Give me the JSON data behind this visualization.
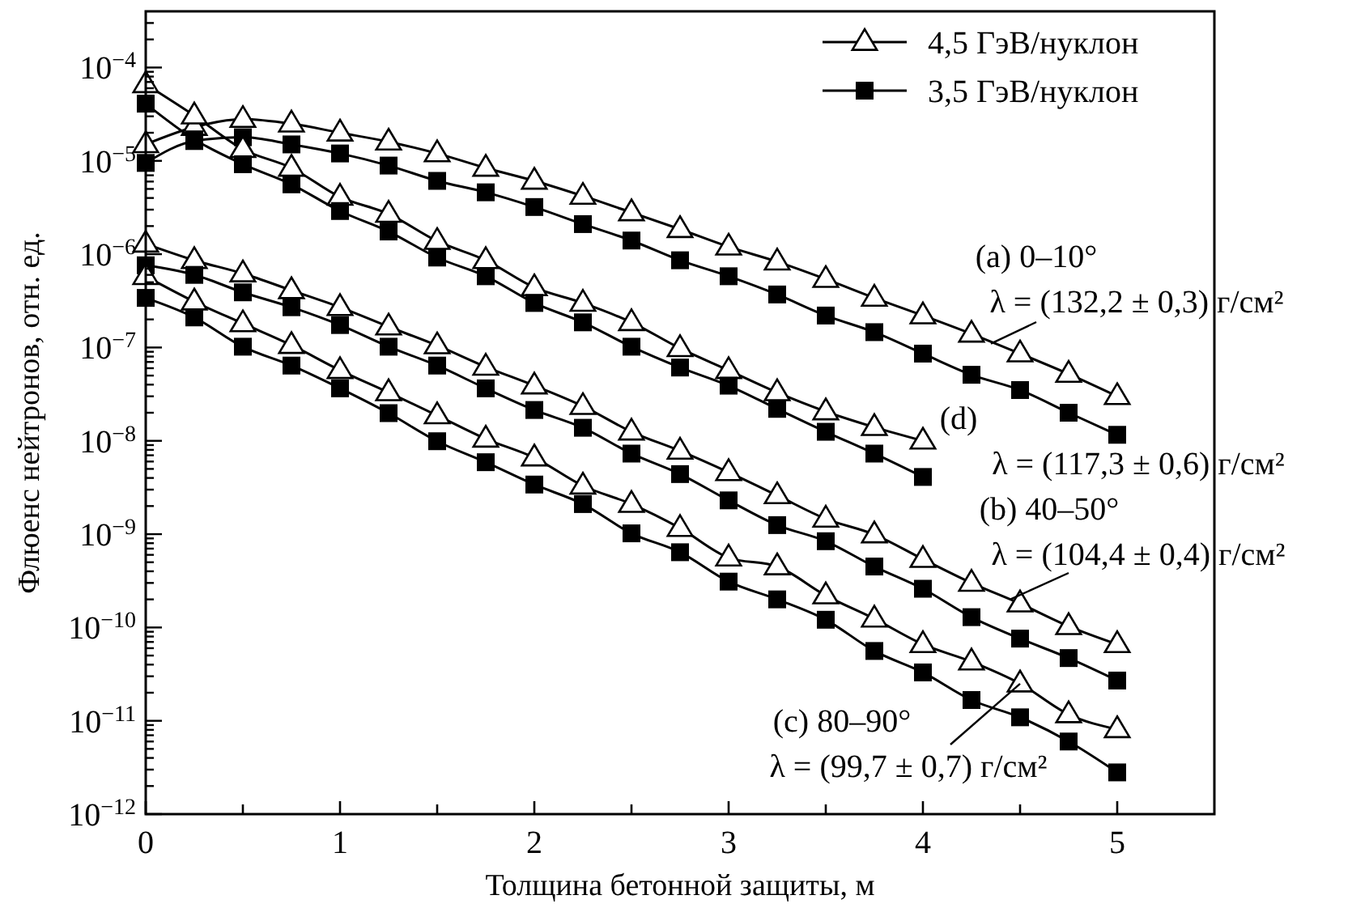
{
  "chart_data": {
    "type": "line",
    "xlabel": "Толщина бетонной защиты, м",
    "ylabel": "Флюенс нейтронов, отн. ед.",
    "log": "y",
    "legend": "top right",
    "line_style": "solid",
    "xlim": [
      0,
      5.5
    ],
    "xticks": [
      0,
      {
        "value": 0.5,
        "label": null
      },
      1,
      {
        "value": 1.5,
        "label": null
      },
      2,
      {
        "value": 2.5,
        "label": null
      },
      3,
      {
        "value": 3.5,
        "label": null
      },
      4,
      {
        "value": 4.5,
        "label": null
      },
      5
    ],
    "ylim": [
      1e-12,
      0.0004
    ],
    "yticks": [
      {
        "value": 1e-12,
        "label": "10$^{−12}$"
      },
      {
        "value": 2e-12,
        "label": null
      },
      {
        "value": 3e-12,
        "label": null
      },
      {
        "value": 4e-12,
        "label": null
      },
      {
        "value": 5e-12,
        "label": null
      },
      {
        "value": 6e-12,
        "label": null
      },
      {
        "value": 7e-12,
        "label": null
      },
      {
        "value": 8e-12,
        "label": null
      },
      {
        "value": 9e-12,
        "label": null
      },
      {
        "value": 1e-11,
        "label": "10$^{−11}$"
      },
      {
        "value": 2e-11,
        "label": null
      },
      {
        "value": 3e-11,
        "label": null
      },
      {
        "value": 4e-11,
        "label": null
      },
      {
        "value": 5e-11,
        "label": null
      },
      {
        "value": 6e-11,
        "label": null
      },
      {
        "value": 7e-11,
        "label": null
      },
      {
        "value": 8e-11,
        "label": null
      },
      {
        "value": 9e-11,
        "label": null
      },
      {
        "value": 1e-10,
        "label": "10$^{−10}$"
      },
      {
        "value": 2e-10,
        "label": null
      },
      {
        "value": 3e-10,
        "label": null
      },
      {
        "value": 4e-10,
        "label": null
      },
      {
        "value": 5e-10,
        "label": null
      },
      {
        "value": 6e-10,
        "label": null
      },
      {
        "value": 7e-10,
        "label": null
      },
      {
        "value": 8e-10,
        "label": null
      },
      {
        "value": 9e-10,
        "label": null
      },
      {
        "value": 1e-09,
        "label": "10$^{−9}$"
      },
      {
        "value": 2e-09,
        "label": null
      },
      {
        "value": 3e-09,
        "label": null
      },
      {
        "value": 4e-09,
        "label": null
      },
      {
        "value": 5e-09,
        "label": null
      },
      {
        "value": 6e-09,
        "label": null
      },
      {
        "value": 7e-09,
        "label": null
      },
      {
        "value": 8e-09,
        "label": null
      },
      {
        "value": 9e-09,
        "label": null
      },
      {
        "value": 1e-08,
        "label": "10$^{−8}$"
      },
      {
        "value": 2e-08,
        "label": null
      },
      {
        "value": 3e-08,
        "label": null
      },
      {
        "value": 4e-08,
        "label": null
      },
      {
        "value": 5e-08,
        "label": null
      },
      {
        "value": 6e-08,
        "label": null
      },
      {
        "value": 7e-08,
        "label": null
      },
      {
        "value": 8e-08,
        "label": null
      },
      {
        "value": 9e-08,
        "label": null
      },
      {
        "value": 1e-07,
        "label": "10$^{−7}$"
      },
      {
        "value": 2e-07,
        "label": null
      },
      {
        "value": 3e-07,
        "label": null
      },
      {
        "value": 4e-07,
        "label": null
      },
      {
        "value": 5e-07,
        "label": null
      },
      {
        "value": 6e-07,
        "label": null
      },
      {
        "value": 7e-07,
        "label": null
      },
      {
        "value": 8e-07,
        "label": null
      },
      {
        "value": 9e-07,
        "label": null
      },
      {
        "value": 1e-06,
        "label": "10$^{−6}$"
      },
      {
        "value": 2e-06,
        "label": null
      },
      {
        "value": 3e-06,
        "label": null
      },
      {
        "value": 4e-06,
        "label": null
      },
      {
        "value": 5e-06,
        "label": null
      },
      {
        "value": 6e-06,
        "label": null
      },
      {
        "value": 7e-06,
        "label": null
      },
      {
        "value": 8e-06,
        "label": null
      },
      {
        "value": 9e-06,
        "label": null
      },
      {
        "value": 1e-05,
        "label": "10$^{−5}$"
      },
      {
        "value": 2e-05,
        "label": null
      },
      {
        "value": 3e-05,
        "label": null
      },
      {
        "value": 4e-05,
        "label": null
      },
      {
        "value": 5e-05,
        "label": null
      },
      {
        "value": 6e-05,
        "label": null
      },
      {
        "value": 7e-05,
        "label": null
      },
      {
        "value": 8e-05,
        "label": null
      },
      {
        "value": 9e-05,
        "label": null
      },
      {
        "value": 0.0001,
        "label": "10$^{−4}$"
      },
      {
        "value": 0.0002,
        "label": null
      },
      {
        "value": 0.0003,
        "label": null
      }
    ],
    "x": [
      0,
      0.25,
      0.5,
      0.75,
      1,
      1.25,
      1.5,
      1.75,
      2,
      2.25,
      2.5,
      2.75,
      3,
      3.25,
      3.5,
      3.75,
      4,
      4.25,
      4.5,
      4.75,
      5
    ],
    "series": [
      {
        "name": "4,5 ГэВ/нуклон",
        "color": "#000000",
        "marker": "triangle",
        "values": [
          1.5e-05,
          2.3e-05,
          2.8e-05,
          2.5e-05,
          2e-05,
          1.6e-05,
          1.2e-05,
          8.4e-06,
          6.1e-06,
          4.2e-06,
          2.8e-06,
          1.85e-06,
          1.2e-06,
          8.3e-07,
          5.4e-07,
          3.4e-07,
          2.2e-07,
          1.4e-07,
          8.6e-08,
          5.2e-08,
          3e-08
        ]
      },
      {
        "name": "3,5 ГэВ/нуклон",
        "color": "#000000",
        "marker": "square",
        "values": [
          9.5e-06,
          1.63e-05,
          1.79e-05,
          1.5e-05,
          1.2e-05,
          8.9e-06,
          6.1e-06,
          4.6e-06,
          3.2e-06,
          2.1e-06,
          1.4e-06,
          8.6e-07,
          5.8e-07,
          3.7e-07,
          2.2e-07,
          1.46e-07,
          8.6e-08,
          5.1e-08,
          3.5e-08,
          2e-08,
          1.16e-08
        ]
      },
      {
        "color": "#000000",
        "marker": "triangle",
        "x": [
          0,
          0.25,
          0.5,
          0.75,
          1,
          1.25,
          1.5,
          1.75,
          2,
          2.25,
          2.5,
          2.75,
          3,
          3.25,
          3.5,
          3.75,
          4
        ],
        "values": [
          6.6e-05,
          3.05e-05,
          1.33e-05,
          8.4e-06,
          4.1e-06,
          2.7e-06,
          1.38e-06,
          8.6e-07,
          4.4e-07,
          3e-07,
          1.86e-07,
          9.8e-08,
          5.7e-08,
          3.3e-08,
          2.06e-08,
          1.4e-08,
          1e-08
        ]
      },
      {
        "color": "#000000",
        "marker": "square",
        "x": [
          0,
          0.25,
          0.5,
          0.75,
          1,
          1.25,
          1.5,
          1.75,
          2,
          2.25,
          2.5,
          2.75,
          3,
          3.25,
          3.5,
          3.75,
          4
        ],
        "values": [
          4.1e-05,
          1.7e-05,
          9.2e-06,
          5.6e-06,
          2.9e-06,
          1.75e-06,
          9.2e-07,
          5.8e-07,
          3e-07,
          1.86e-07,
          1.02e-07,
          6.1e-08,
          3.9e-08,
          2.2e-08,
          1.25e-08,
          7.3e-09,
          4.1e-09
        ]
      },
      {
        "color": "#000000",
        "marker": "triangle",
        "values": [
          1.29e-06,
          8.6e-07,
          6.2e-07,
          4.1e-07,
          2.7e-07,
          1.67e-07,
          1.05e-07,
          6.2e-08,
          3.9e-08,
          2.35e-08,
          1.25e-08,
          7.8e-09,
          4.6e-09,
          2.6e-09,
          1.46e-09,
          9.9e-10,
          5.4e-10,
          3e-10,
          1.8e-10,
          1.03e-10,
          6.6e-11
        ]
      },
      {
        "color": "#000000",
        "marker": "square",
        "values": [
          7.6e-07,
          6e-07,
          3.9e-07,
          2.7e-07,
          1.74e-07,
          1.02e-07,
          6.4e-08,
          3.65e-08,
          2.14e-08,
          1.38e-08,
          7.3e-09,
          4.4e-09,
          2.3e-09,
          1.25e-09,
          8.4e-10,
          4.5e-10,
          2.6e-10,
          1.29e-10,
          7.6e-11,
          4.7e-11,
          2.7e-11
        ]
      },
      {
        "color": "#000000",
        "marker": "triangle",
        "values": [
          5.8e-07,
          3.1e-07,
          1.81e-07,
          1.06e-07,
          5.7e-08,
          3.3e-08,
          1.87e-08,
          1.05e-08,
          6.6e-09,
          3.3e-09,
          2.1e-09,
          1.16e-09,
          5.6e-10,
          4.5e-10,
          2.2e-10,
          1.24e-10,
          6.6e-11,
          4.3e-11,
          2.5e-11,
          1.17e-11,
          8.1e-12
        ]
      },
      {
        "color": "#000000",
        "marker": "square",
        "values": [
          3.4e-07,
          2.1e-07,
          1.02e-07,
          6.4e-08,
          3.65e-08,
          1.98e-08,
          9.9e-09,
          5.9e-09,
          3.4e-09,
          2.1e-09,
          1.02e-09,
          6.4e-10,
          3.1e-10,
          2e-10,
          1.21e-10,
          5.6e-11,
          3.3e-11,
          1.67e-11,
          1.09e-11,
          6e-12,
          2.8e-12
        ]
      }
    ],
    "annotations": [
      {
        "text": "(a) 0–10°\nλ = (132,2 ± 0,3) г/см²",
        "x": 4.35,
        "y": 1.1e-07
      },
      "(d)\nλ = (117,3 ± 0,6) г/см²",
      {
        "text": "(b) 40–50°\nλ = (104,4 ± 0,4) г/см²",
        "x": 4.45,
        "y": 2e-10
      },
      {
        "text": "(c) 80–90°\nλ = (99,7 ± 0,7) г/см²",
        "x": 4.5,
        "y": 2.5e-11
      }
    ]
  }
}
